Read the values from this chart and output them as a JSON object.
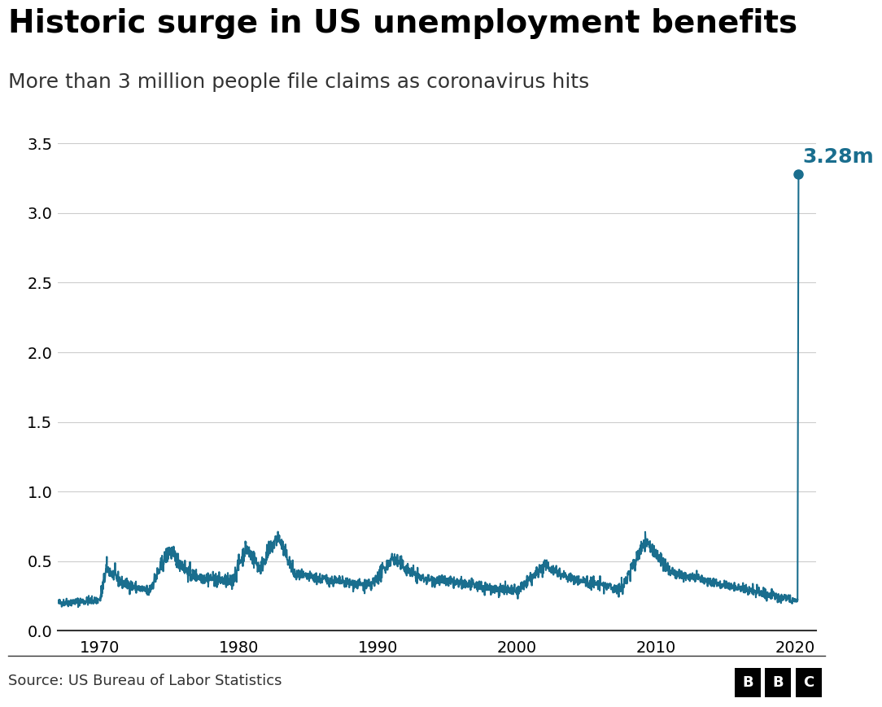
{
  "title": "Historic surge in US unemployment benefits",
  "subtitle": "More than 3 million people file claims as coronavirus hits",
  "source": "Source: US Bureau of Labor Statistics",
  "line_color": "#1a6e8e",
  "annotation_color": "#1a6e8e",
  "background_color": "#ffffff",
  "title_fontsize": 28,
  "subtitle_fontsize": 18,
  "axis_fontsize": 14,
  "annotation_fontsize": 18,
  "source_fontsize": 13,
  "xlim": [
    1967.0,
    2021.5
  ],
  "ylim": [
    0.0,
    3.7
  ],
  "yticks": [
    0.0,
    0.5,
    1.0,
    1.5,
    2.0,
    2.5,
    3.0,
    3.5
  ],
  "xticks": [
    1970,
    1980,
    1990,
    2000,
    2010,
    2020
  ],
  "peak_value": 3.28,
  "peak_year": 2020.22,
  "peak_label": "3.28m"
}
